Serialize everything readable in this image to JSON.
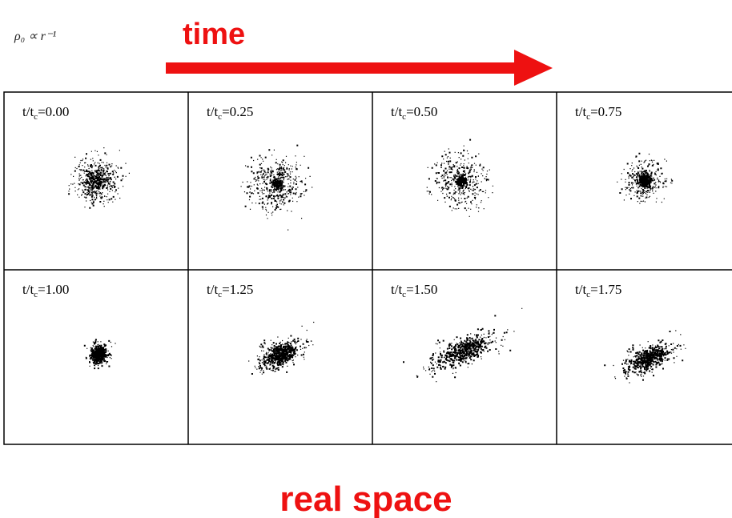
{
  "note": "ρ₀ ∝ r⁻¹",
  "title": "time",
  "caption": "real space",
  "panels": [
    {
      "prefix": "t/t",
      "subscript": "c",
      "suffix": "=0.00"
    },
    {
      "prefix": "t/t",
      "subscript": "c",
      "suffix": "=0.25"
    },
    {
      "prefix": "t/t",
      "subscript": "c",
      "suffix": "=0.50"
    },
    {
      "prefix": "t/t",
      "subscript": "c",
      "suffix": "=0.75"
    },
    {
      "prefix": "t/t",
      "subscript": "c",
      "suffix": "=1.00"
    },
    {
      "prefix": "t/t",
      "subscript": "c",
      "suffix": "=1.25"
    },
    {
      "prefix": "t/t",
      "subscript": "c",
      "suffix": "=1.50"
    },
    {
      "prefix": "t/t",
      "subscript": "c",
      "suffix": "=1.75"
    }
  ]
}
